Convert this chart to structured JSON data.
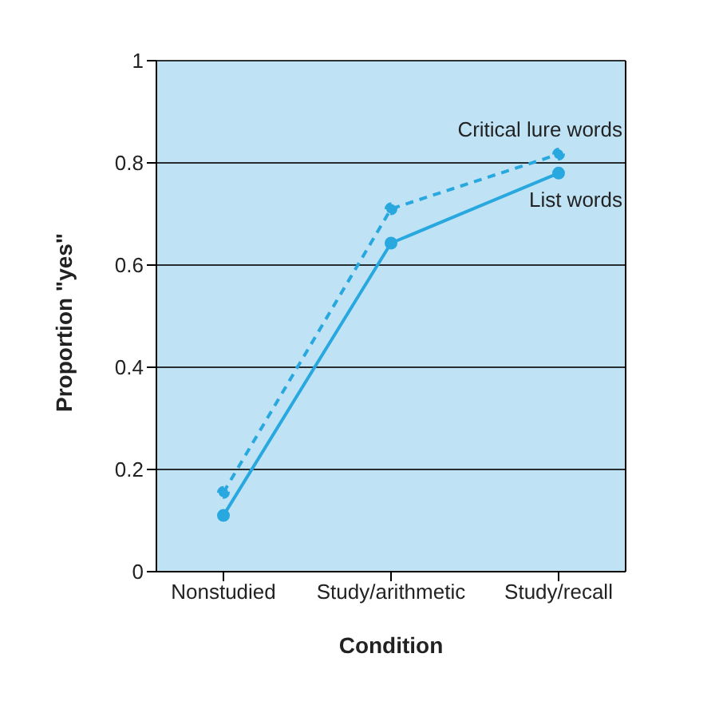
{
  "chart_data": {
    "type": "line",
    "xlabel": "Condition",
    "ylabel": "Proportion \"yes\"",
    "categories": [
      "Nonstudied",
      "Study/arithmetic",
      "Study/recall"
    ],
    "series": [
      {
        "name": "Critical lure words",
        "color": "#29a8e0",
        "values": [
          0.155,
          0.71,
          0.817
        ],
        "line_style": "dashed"
      },
      {
        "name": "List words",
        "color": "#29a8e0",
        "values": [
          0.11,
          0.643,
          0.78
        ],
        "line_style": "solid"
      }
    ],
    "ylim": [
      0,
      1
    ],
    "yticks": [
      0,
      0.2,
      0.4,
      0.6,
      0.8,
      1
    ],
    "grid": "y",
    "marker": "circle",
    "legend": false
  }
}
